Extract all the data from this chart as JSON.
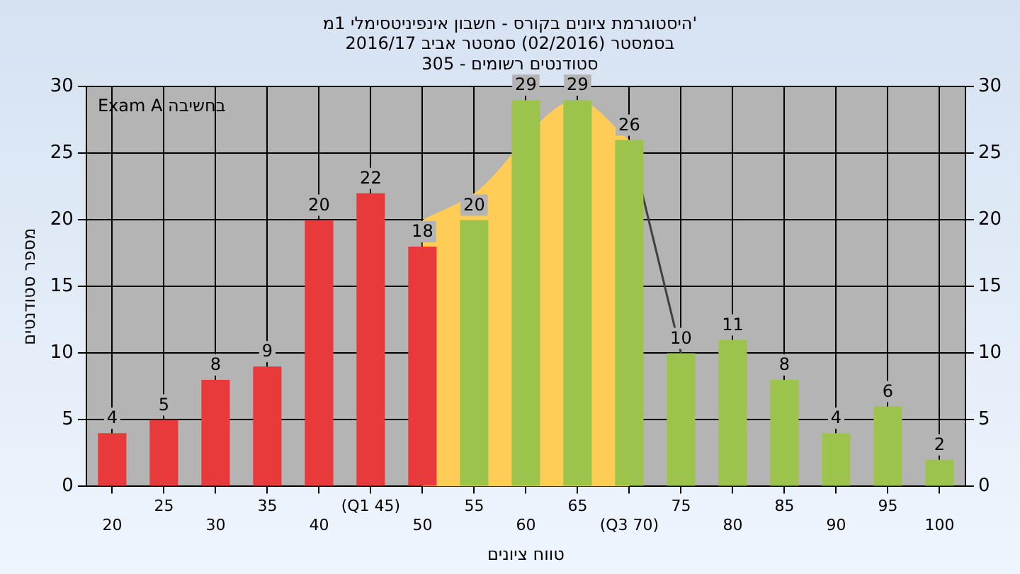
{
  "chart_data": {
    "type": "bar",
    "title": "היסטוגרמת ציונים בקורס - חשבון אינפיניטסימלי 1מ'",
    "subtitle": "בסמסטר (02/2016) סמסטר אביב 2016/17\nסטודנטים רשומים - 305",
    "xlabel": "טווח ציונים",
    "ylabel": "מספר סטודנטים",
    "annotations": [
      "Exam A בחשיבה"
    ],
    "categories": [
      "20",
      "25",
      "30",
      "35",
      "40",
      "(Q1 45)",
      "50",
      "55",
      "60",
      "65",
      "(Q3 70)",
      "75",
      "80",
      "85",
      "90",
      "95",
      "100"
    ],
    "series": [
      {
        "value_labels": [
          "4",
          "5",
          "8",
          "9",
          "20",
          "22",
          "18",
          "20",
          "29",
          "29",
          "26",
          "10",
          "11",
          "8",
          "4",
          "6",
          "2"
        ],
        "colors": [
          "#e8393b",
          "#e8393b",
          "#e8393b",
          "#e8393b",
          "#e8393b",
          "#e8393b",
          "#e8393b",
          "#9cc44c",
          "#9cc44c",
          "#9cc44c",
          "#9cc44c",
          "#9cc44c",
          "#9cc44c",
          "#9cc44c",
          "#9cc44c",
          "#9cc44c",
          "#9cc44c"
        ],
        "values": [
          4,
          5,
          8,
          9,
          20,
          22,
          18,
          20,
          29,
          29,
          26,
          10,
          11,
          8,
          4,
          6,
          2
        ]
      },
      {
        "type": "area",
        "color": "#ffcc55",
        "values": [
          null,
          null,
          null,
          null,
          null,
          null,
          20,
          22,
          null,
          29,
          26,
          null,
          null,
          null,
          null,
          null,
          null
        ]
      },
      {
        "type": "line",
        "color": "#404040",
        "values": [
          null,
          null,
          null,
          null,
          null,
          null,
          null,
          null,
          null,
          null,
          26,
          10,
          null,
          null,
          null,
          null,
          null
        ]
      }
    ],
    "ylim": [
      0,
      30
    ],
    "yticks": [
      0,
      5,
      10,
      15,
      20,
      25,
      30
    ],
    "y2lim": [
      0,
      30
    ],
    "y2ticks": [
      0,
      5,
      10,
      15,
      20,
      25,
      30
    ],
    "grid": true,
    "legend": false
  }
}
